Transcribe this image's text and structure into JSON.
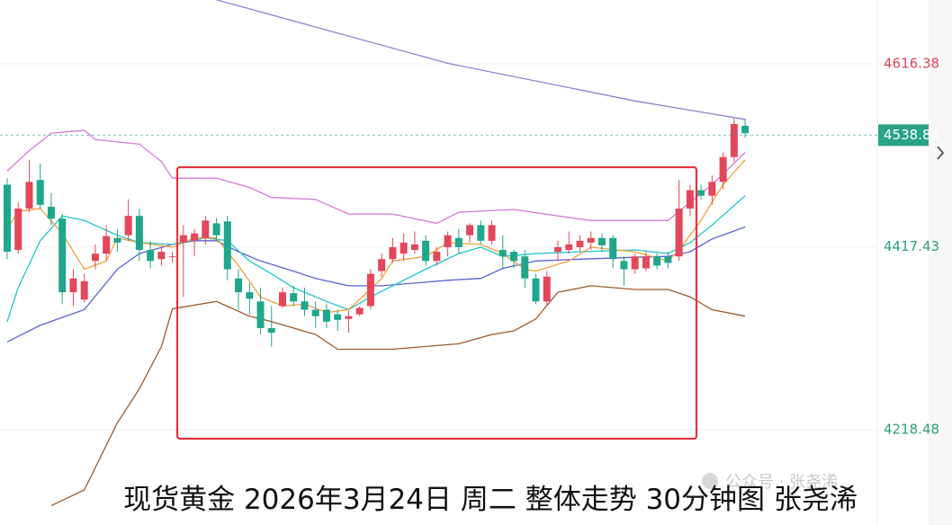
{
  "chart_data": {
    "type": "candlestick",
    "title": "现货黄金 2026年3月24日 周二 整体走势 30分钟图 张尧浠",
    "watermark": "公众号 · 张尧浠",
    "ylim": [
      4114.9,
      4685.8
    ],
    "yticks": [
      4616.38,
      4417.43,
      4218.48
    ],
    "ytick_colors": [
      "#d9455a",
      "#2e9e78",
      "#2e9e78"
    ],
    "grid": true,
    "last_price": 4538.84,
    "last_price_color": "#2aa387",
    "up_color": "#e2475b",
    "down_color": "#1fa68c",
    "open": [
      4485,
      4414,
      4459,
      4490,
      4461,
      4448,
      4368,
      4360,
      4402,
      4410,
      4427,
      4430,
      4451,
      4414,
      4404,
      4407,
      4422,
      4424,
      4427,
      4443,
      4445,
      4383,
      4368,
      4358,
      4329,
      4353,
      4367,
      4358,
      4349,
      4349,
      4344,
      4339,
      4344,
      4353,
      4391,
      4404,
      4410,
      4414,
      4424,
      4402,
      4417,
      4427,
      4430,
      4441,
      4424,
      4414,
      4412,
      4407,
      4383,
      4358,
      4412,
      4414,
      4417,
      4422,
      4427,
      4427,
      4402,
      4393,
      4394,
      4407,
      4407,
      4407,
      4459,
      4479,
      4473,
      4488,
      4515,
      4549
    ],
    "high": [
      4492,
      4466,
      4512,
      4508,
      4476,
      4453,
      4393,
      4388,
      4420,
      4441,
      4437,
      4469,
      4459,
      4424,
      4417,
      4412,
      4441,
      4437,
      4451,
      4449,
      4451,
      4393,
      4378,
      4373,
      4353,
      4373,
      4375,
      4373,
      4358,
      4355,
      4349,
      4348,
      4353,
      4393,
      4410,
      4427,
      4432,
      4434,
      4430,
      4417,
      4434,
      4437,
      4443,
      4446,
      4446,
      4430,
      4414,
      4414,
      4388,
      4391,
      4424,
      4434,
      4430,
      4434,
      4432,
      4430,
      4407,
      4410,
      4412,
      4410,
      4412,
      4490,
      4485,
      4485,
      4495,
      4520,
      4557,
      4557
    ],
    "low": [
      4404,
      4410,
      4455,
      4459,
      4441,
      4355,
      4353,
      4357,
      4393,
      4402,
      4412,
      4424,
      4402,
      4394,
      4397,
      4400,
      4363,
      4407,
      4420,
      4424,
      4381,
      4349,
      4344,
      4322,
      4309,
      4351,
      4353,
      4342,
      4329,
      4329,
      4326,
      4324,
      4342,
      4349,
      4385,
      4400,
      4402,
      4410,
      4397,
      4397,
      4407,
      4410,
      4422,
      4420,
      4420,
      4393,
      4394,
      4373,
      4355,
      4353,
      4402,
      4410,
      4412,
      4414,
      4412,
      4394,
      4375,
      4388,
      4391,
      4393,
      4394,
      4402,
      4451,
      4469,
      4463,
      4480,
      4510,
      4536
    ],
    "close": [
      4412,
      4459,
      4488,
      4463,
      4448,
      4368,
      4383,
      4380,
      4410,
      4429,
      4422,
      4451,
      4414,
      4402,
      4412,
      4407,
      4430,
      4432,
      4446,
      4430,
      4393,
      4368,
      4361,
      4329,
      4324,
      4368,
      4358,
      4349,
      4342,
      4336,
      4338,
      4342,
      4351,
      4388,
      4404,
      4417,
      4422,
      4420,
      4402,
      4412,
      4430,
      4417,
      4441,
      4424,
      4441,
      4407,
      4402,
      4383,
      4358,
      4385,
      4417,
      4420,
      4424,
      4427,
      4419,
      4404,
      4393,
      4407,
      4407,
      4397,
      4400,
      4459,
      4479,
      4473,
      4488,
      4515,
      4551,
      4541
    ],
    "lines": [
      {
        "color": "#8d80d2",
        "x": [
          19,
          40,
          57,
          67
        ],
        "values": [
          4686,
          4617,
          4576,
          4556
        ]
      },
      {
        "color": "#d47ad6",
        "x": [
          0,
          2,
          4,
          7,
          8,
          12,
          14,
          15,
          19,
          22,
          24,
          28,
          31,
          35,
          39,
          41,
          46,
          50,
          53,
          57,
          60,
          61,
          64,
          67
        ],
        "values": [
          4500,
          4522,
          4541,
          4544,
          4534,
          4529,
          4510,
          4492,
          4492,
          4482,
          4471,
          4469,
          4453,
          4453,
          4443,
          4455,
          4458,
          4451,
          4446,
          4446,
          4446,
          4456,
          4485,
          4520
        ]
      },
      {
        "color": "#9a5b2c",
        "x": [
          4,
          7,
          10,
          12,
          14,
          15,
          19,
          22,
          24,
          28,
          30,
          35,
          39,
          41,
          44,
          46,
          48,
          50,
          53,
          57,
          60,
          62,
          64,
          67
        ],
        "values": [
          4136,
          4153,
          4226,
          4263,
          4309,
          4350,
          4358,
          4342,
          4336,
          4322,
          4306,
          4306,
          4310,
          4312,
          4322,
          4326,
          4339,
          4368,
          4375,
          4371,
          4371,
          4363,
          4349,
          4342
        ]
      },
      {
        "color": "#5a62d4",
        "x": [
          0,
          3,
          7,
          10,
          12,
          15,
          17,
          19,
          21,
          23,
          26,
          28,
          31,
          34,
          37,
          40,
          43,
          45,
          48,
          52,
          57,
          60,
          62,
          64,
          67
        ],
        "values": [
          4314,
          4332,
          4349,
          4393,
          4410,
          4420,
          4424,
          4424,
          4412,
          4402,
          4391,
          4383,
          4375,
          4375,
          4378,
          4381,
          4383,
          4394,
          4402,
          4404,
          4406,
          4407,
          4412,
          4426,
          4439
        ]
      },
      {
        "color": "#22c4c8",
        "x": [
          0,
          1,
          3,
          5,
          7,
          10,
          12,
          15,
          18,
          20,
          22,
          24,
          26,
          29,
          31,
          33,
          35,
          38,
          41,
          43,
          45,
          48,
          52,
          57,
          60,
          62,
          64,
          67
        ],
        "values": [
          4336,
          4373,
          4424,
          4451,
          4446,
          4430,
          4422,
          4420,
          4427,
          4424,
          4402,
          4388,
          4373,
          4358,
          4349,
          4363,
          4375,
          4393,
          4410,
          4417,
          4407,
          4410,
          4412,
          4414,
          4410,
          4422,
          4441,
          4473
        ]
      },
      {
        "color": "#f0a03c",
        "x": [
          0,
          1,
          3,
          5,
          7,
          9,
          10,
          12,
          15,
          17,
          19,
          21,
          23,
          25,
          27,
          29,
          31,
          34,
          35,
          38,
          40,
          43,
          45,
          47,
          48,
          51,
          53,
          57,
          60,
          61,
          63,
          64,
          65,
          67
        ],
        "values": [
          4437,
          4456,
          4459,
          4432,
          4393,
          4402,
          4427,
          4422,
          4417,
          4427,
          4427,
          4397,
          4363,
          4353,
          4355,
          4346,
          4349,
          4383,
          4402,
          4407,
          4422,
          4420,
          4410,
          4393,
          4391,
          4402,
          4417,
          4412,
          4402,
          4414,
          4446,
          4466,
          4485,
          4512
        ]
      }
    ]
  }
}
